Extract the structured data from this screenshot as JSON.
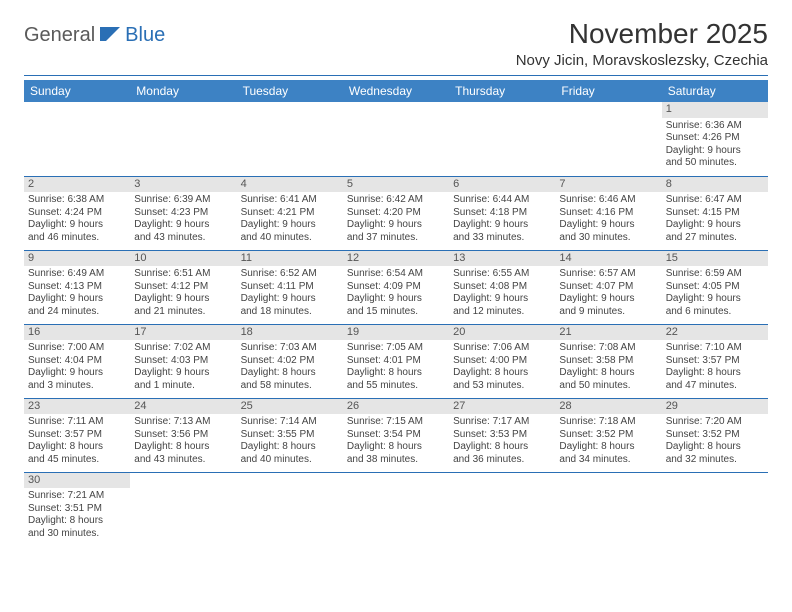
{
  "logo": {
    "text1": "General",
    "text2": "Blue"
  },
  "title": {
    "month_year": "November 2025",
    "location": "Novy Jicin, Moravskoslezsky, Czechia"
  },
  "colors": {
    "header_bg": "#3d82c4",
    "rule": "#2a6fb5",
    "daynum_bg": "#e5e5e5"
  },
  "day_headers": [
    "Sunday",
    "Monday",
    "Tuesday",
    "Wednesday",
    "Thursday",
    "Friday",
    "Saturday"
  ],
  "weeks": [
    [
      {
        "empty": true
      },
      {
        "empty": true
      },
      {
        "empty": true
      },
      {
        "empty": true
      },
      {
        "empty": true
      },
      {
        "empty": true
      },
      {
        "num": "1",
        "sunrise": "Sunrise: 6:36 AM",
        "sunset": "Sunset: 4:26 PM",
        "day1": "Daylight: 9 hours",
        "day2": "and 50 minutes."
      }
    ],
    [
      {
        "num": "2",
        "sunrise": "Sunrise: 6:38 AM",
        "sunset": "Sunset: 4:24 PM",
        "day1": "Daylight: 9 hours",
        "day2": "and 46 minutes."
      },
      {
        "num": "3",
        "sunrise": "Sunrise: 6:39 AM",
        "sunset": "Sunset: 4:23 PM",
        "day1": "Daylight: 9 hours",
        "day2": "and 43 minutes."
      },
      {
        "num": "4",
        "sunrise": "Sunrise: 6:41 AM",
        "sunset": "Sunset: 4:21 PM",
        "day1": "Daylight: 9 hours",
        "day2": "and 40 minutes."
      },
      {
        "num": "5",
        "sunrise": "Sunrise: 6:42 AM",
        "sunset": "Sunset: 4:20 PM",
        "day1": "Daylight: 9 hours",
        "day2": "and 37 minutes."
      },
      {
        "num": "6",
        "sunrise": "Sunrise: 6:44 AM",
        "sunset": "Sunset: 4:18 PM",
        "day1": "Daylight: 9 hours",
        "day2": "and 33 minutes."
      },
      {
        "num": "7",
        "sunrise": "Sunrise: 6:46 AM",
        "sunset": "Sunset: 4:16 PM",
        "day1": "Daylight: 9 hours",
        "day2": "and 30 minutes."
      },
      {
        "num": "8",
        "sunrise": "Sunrise: 6:47 AM",
        "sunset": "Sunset: 4:15 PM",
        "day1": "Daylight: 9 hours",
        "day2": "and 27 minutes."
      }
    ],
    [
      {
        "num": "9",
        "sunrise": "Sunrise: 6:49 AM",
        "sunset": "Sunset: 4:13 PM",
        "day1": "Daylight: 9 hours",
        "day2": "and 24 minutes."
      },
      {
        "num": "10",
        "sunrise": "Sunrise: 6:51 AM",
        "sunset": "Sunset: 4:12 PM",
        "day1": "Daylight: 9 hours",
        "day2": "and 21 minutes."
      },
      {
        "num": "11",
        "sunrise": "Sunrise: 6:52 AM",
        "sunset": "Sunset: 4:11 PM",
        "day1": "Daylight: 9 hours",
        "day2": "and 18 minutes."
      },
      {
        "num": "12",
        "sunrise": "Sunrise: 6:54 AM",
        "sunset": "Sunset: 4:09 PM",
        "day1": "Daylight: 9 hours",
        "day2": "and 15 minutes."
      },
      {
        "num": "13",
        "sunrise": "Sunrise: 6:55 AM",
        "sunset": "Sunset: 4:08 PM",
        "day1": "Daylight: 9 hours",
        "day2": "and 12 minutes."
      },
      {
        "num": "14",
        "sunrise": "Sunrise: 6:57 AM",
        "sunset": "Sunset: 4:07 PM",
        "day1": "Daylight: 9 hours",
        "day2": "and 9 minutes."
      },
      {
        "num": "15",
        "sunrise": "Sunrise: 6:59 AM",
        "sunset": "Sunset: 4:05 PM",
        "day1": "Daylight: 9 hours",
        "day2": "and 6 minutes."
      }
    ],
    [
      {
        "num": "16",
        "sunrise": "Sunrise: 7:00 AM",
        "sunset": "Sunset: 4:04 PM",
        "day1": "Daylight: 9 hours",
        "day2": "and 3 minutes."
      },
      {
        "num": "17",
        "sunrise": "Sunrise: 7:02 AM",
        "sunset": "Sunset: 4:03 PM",
        "day1": "Daylight: 9 hours",
        "day2": "and 1 minute."
      },
      {
        "num": "18",
        "sunrise": "Sunrise: 7:03 AM",
        "sunset": "Sunset: 4:02 PM",
        "day1": "Daylight: 8 hours",
        "day2": "and 58 minutes."
      },
      {
        "num": "19",
        "sunrise": "Sunrise: 7:05 AM",
        "sunset": "Sunset: 4:01 PM",
        "day1": "Daylight: 8 hours",
        "day2": "and 55 minutes."
      },
      {
        "num": "20",
        "sunrise": "Sunrise: 7:06 AM",
        "sunset": "Sunset: 4:00 PM",
        "day1": "Daylight: 8 hours",
        "day2": "and 53 minutes."
      },
      {
        "num": "21",
        "sunrise": "Sunrise: 7:08 AM",
        "sunset": "Sunset: 3:58 PM",
        "day1": "Daylight: 8 hours",
        "day2": "and 50 minutes."
      },
      {
        "num": "22",
        "sunrise": "Sunrise: 7:10 AM",
        "sunset": "Sunset: 3:57 PM",
        "day1": "Daylight: 8 hours",
        "day2": "and 47 minutes."
      }
    ],
    [
      {
        "num": "23",
        "sunrise": "Sunrise: 7:11 AM",
        "sunset": "Sunset: 3:57 PM",
        "day1": "Daylight: 8 hours",
        "day2": "and 45 minutes."
      },
      {
        "num": "24",
        "sunrise": "Sunrise: 7:13 AM",
        "sunset": "Sunset: 3:56 PM",
        "day1": "Daylight: 8 hours",
        "day2": "and 43 minutes."
      },
      {
        "num": "25",
        "sunrise": "Sunrise: 7:14 AM",
        "sunset": "Sunset: 3:55 PM",
        "day1": "Daylight: 8 hours",
        "day2": "and 40 minutes."
      },
      {
        "num": "26",
        "sunrise": "Sunrise: 7:15 AM",
        "sunset": "Sunset: 3:54 PM",
        "day1": "Daylight: 8 hours",
        "day2": "and 38 minutes."
      },
      {
        "num": "27",
        "sunrise": "Sunrise: 7:17 AM",
        "sunset": "Sunset: 3:53 PM",
        "day1": "Daylight: 8 hours",
        "day2": "and 36 minutes."
      },
      {
        "num": "28",
        "sunrise": "Sunrise: 7:18 AM",
        "sunset": "Sunset: 3:52 PM",
        "day1": "Daylight: 8 hours",
        "day2": "and 34 minutes."
      },
      {
        "num": "29",
        "sunrise": "Sunrise: 7:20 AM",
        "sunset": "Sunset: 3:52 PM",
        "day1": "Daylight: 8 hours",
        "day2": "and 32 minutes."
      }
    ],
    [
      {
        "num": "30",
        "sunrise": "Sunrise: 7:21 AM",
        "sunset": "Sunset: 3:51 PM",
        "day1": "Daylight: 8 hours",
        "day2": "and 30 minutes."
      },
      {
        "empty": true
      },
      {
        "empty": true
      },
      {
        "empty": true
      },
      {
        "empty": true
      },
      {
        "empty": true
      },
      {
        "empty": true
      }
    ]
  ]
}
